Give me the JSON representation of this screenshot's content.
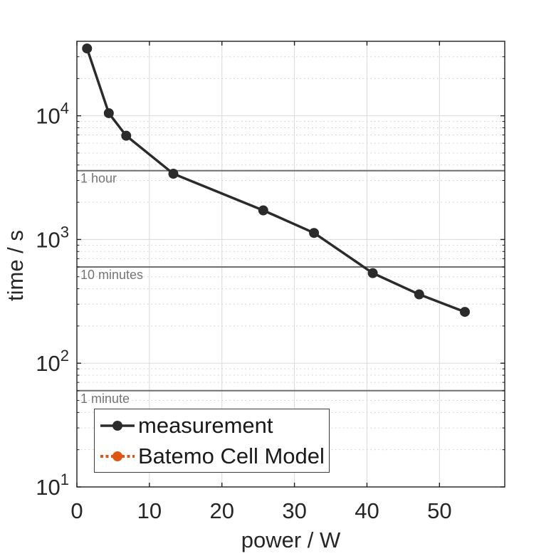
{
  "chart_data": {
    "type": "line",
    "title": "",
    "xlabel": "power / W",
    "ylabel": "time / s",
    "x_scale": "linear",
    "y_scale": "log",
    "xlim": [
      0,
      59
    ],
    "ylim": [
      10,
      40000
    ],
    "x_ticks": [
      0,
      10,
      20,
      30,
      40,
      50
    ],
    "y_tick_base": "10",
    "y_tick_exponents": [
      1,
      2,
      3,
      4
    ],
    "grid": {
      "major": true,
      "minor_horizontal_dotted": true
    },
    "legend_position": "south-west",
    "colors": {
      "axis": "#1f1f1f",
      "tick_text": "#262626",
      "major_grid": "#d9d9d9",
      "minor_grid": "#cccccc",
      "reference_line": "#6e6e6e",
      "reference_text": "#757575",
      "measurement": "#2b2b2b",
      "model_orange": "#de5614"
    },
    "reference_lines": [
      {
        "value": 3600,
        "label": "1 hour"
      },
      {
        "value": 600,
        "label": "10 minutes"
      },
      {
        "value": 60,
        "label": "1 minute"
      }
    ],
    "series": [
      {
        "name": "measurement",
        "color": "#2b2b2b",
        "line_style": "solid",
        "marker": "circle",
        "points": [
          [
            1.4,
            35000
          ],
          [
            4.4,
            10500
          ],
          [
            6.8,
            6900
          ],
          [
            13.3,
            3400
          ],
          [
            25.7,
            1720
          ],
          [
            32.7,
            1130
          ],
          [
            40.8,
            535
          ],
          [
            47.2,
            360
          ],
          [
            53.5,
            260
          ]
        ]
      },
      {
        "name": "Batemo Cell Model",
        "color": "#de5614",
        "line_style": "dotted",
        "marker": "circle",
        "points": []
      }
    ]
  }
}
